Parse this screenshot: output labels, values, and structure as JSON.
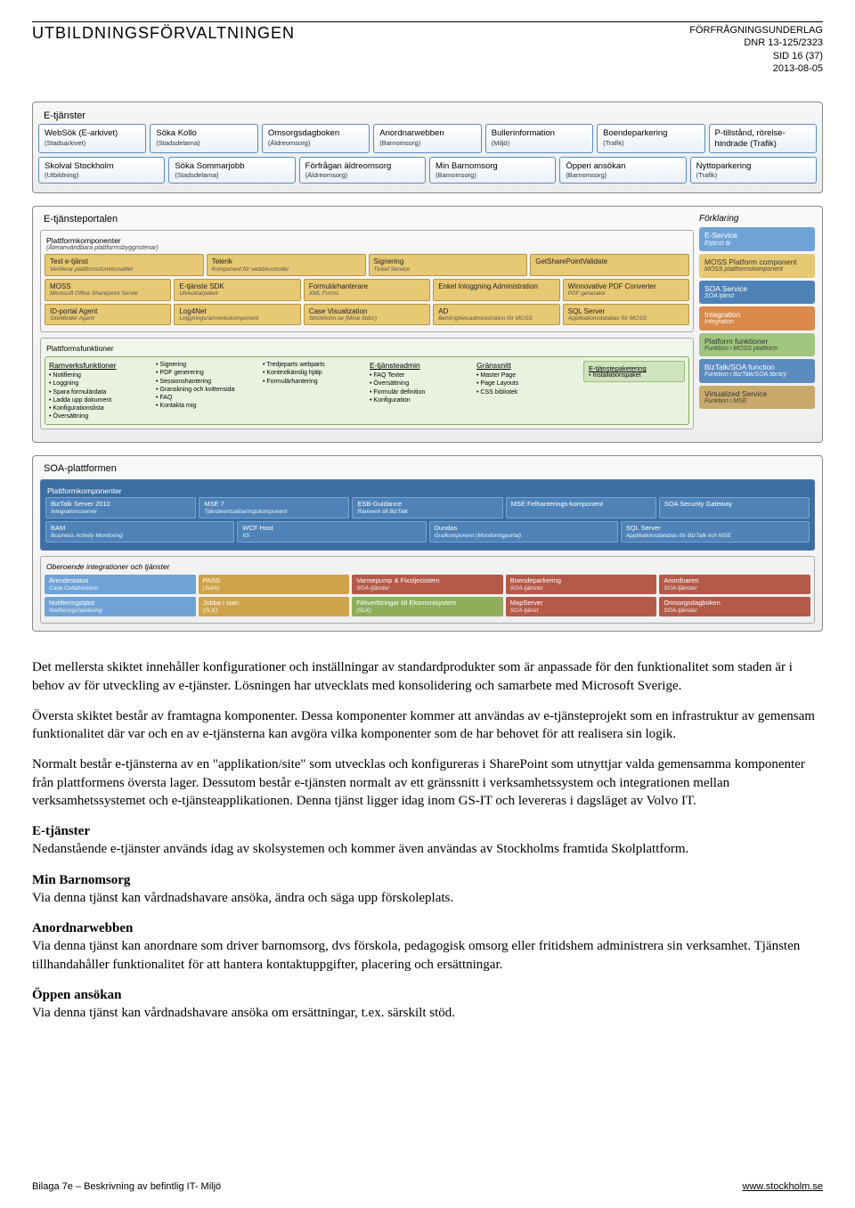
{
  "header": {
    "org": "UTBILDNINGSFÖRVALTNINGEN",
    "right1": "FÖRFRÅGNINGSUNDERLAG",
    "right2": "DNR 13-125/2323",
    "right3": "SID 16 (37)",
    "right4": "2013-08-05"
  },
  "colors": {
    "e_service": "#6fa3d8",
    "moss_component": "#e7c873",
    "soa_service": "#4f83b8",
    "integration": "#d98a4a",
    "platform_func": "#9fc57e",
    "biztalk_func": "#5b8bbf",
    "virtualized": "#c9a96b",
    "red": "#b55a4a",
    "yellow": "#cfa34a",
    "green": "#8fae5b"
  },
  "etjanster": {
    "title": "E-tjänster",
    "row1": [
      {
        "t": "WebSök (E-arkivet)",
        "s": "(Stadsarkivet)"
      },
      {
        "t": "Söka Kollo",
        "s": "(Stadsdelarna)"
      },
      {
        "t": "Omsorgsdagboken",
        "s": "(Äldreomsorg)"
      },
      {
        "t": "Anordnarwebben",
        "s": "(Barnomsorg)"
      },
      {
        "t": "Bullerinformation",
        "s": "(Miljö)"
      },
      {
        "t": "Boendeparkering",
        "s": "(Trafik)"
      },
      {
        "t": "P-tillstånd, rörelse-hindrade (Trafik)",
        "s": ""
      }
    ],
    "row2": [
      {
        "t": "Skolval Stockholm",
        "s": "(Utbildning)"
      },
      {
        "t": "Söka Sommarjobb",
        "s": "(Stadsdelarna)"
      },
      {
        "t": "Förfrågan äldreomsorg",
        "s": "(Äldreomsorg)"
      },
      {
        "t": "Min Barnomsorg",
        "s": "(Barnomsorg)"
      },
      {
        "t": "Öppen ansökan",
        "s": "(Barnomsorg)"
      },
      {
        "t": "Nyttoparkering",
        "s": "(Trafik)"
      }
    ]
  },
  "portal": {
    "title": "E-tjänsteportalen",
    "forklaring_title": "Förklaring",
    "forklaring": [
      {
        "t": "E-Service",
        "s": "Etjänst är",
        "c": "#6fa3d8"
      },
      {
        "t": "MOSS Platform component",
        "s": "MOSS plattformskomponent",
        "c": "#e7c873",
        "tc": "#333"
      },
      {
        "t": "SOA Service",
        "s": "SOA tjänst",
        "c": "#4f83b8"
      },
      {
        "t": "Integration",
        "s": "Integration",
        "c": "#d98a4a"
      },
      {
        "t": "Platform funktioner",
        "s": "Funktion i MOSS plattform",
        "c": "#9fc57e",
        "tc": "#333"
      },
      {
        "t": "BizTalk/SOA function",
        "s": "Funktion i BizTalk/SOA library",
        "c": "#5b8bbf"
      },
      {
        "t": "Virtualized Service",
        "s": "Funktion i MSE",
        "c": "#c9a96b",
        "tc": "#333"
      }
    ],
    "platt_title": "Plattformkomponenter",
    "platt_sub": "(Återanvändbara plattformsbyggnstenar)",
    "platt_rows": [
      [
        {
          "t": "Test e-tjänst",
          "s": "Verifierar plattformsfunktionalitet"
        },
        {
          "t": "Telerik",
          "s": "Komponent för webbkontroller"
        },
        {
          "t": "Signering",
          "s": "Ticket Service"
        },
        {
          "t": "GetSharePointValidate",
          "s": ""
        }
      ],
      [
        {
          "t": "MOSS",
          "s": "Microsoft Office Sharepoint Server"
        },
        {
          "t": "E-tjänste SDK",
          "s": "Utvecklarpaket"
        },
        {
          "t": "Formulärhanterare",
          "s": "XML Forms"
        },
        {
          "t": "Enkel Inloggning Administration",
          "s": ""
        },
        {
          "t": "Winnovative PDF Converter",
          "s": "PDF generator"
        }
      ],
      [
        {
          "t": "ID-portal Agent",
          "s": "SiteMinder Agent"
        },
        {
          "t": "Log4Net",
          "s": "Loggningsramverkskomponent"
        },
        {
          "t": "Case Visualization",
          "s": "Stockholm.se (Mina Sidor)"
        },
        {
          "t": "AD",
          "s": "Behörighetsadministration för MOSS"
        },
        {
          "t": "SQL Server",
          "s": "Applikationsdatabas för MOSS"
        }
      ]
    ],
    "func_title": "Plattformsfunktioner",
    "func_cols": [
      {
        "title": "Ramverksfunktioner",
        "items": [
          "Notifiering",
          "Loggning",
          "Spara formulärdata",
          "Ladda upp dokument",
          "Konfigurationslista",
          "Översättning"
        ]
      },
      {
        "title": "",
        "items": [
          "Signering",
          "PDF generering",
          "Sessionshantering",
          "Granskning och kvittensida",
          "FAQ",
          "Kontakta mig"
        ]
      },
      {
        "title": "",
        "items": [
          "Tredjeparts webparts",
          "Kontextkänslig hjälp",
          "Formulärhantering"
        ]
      },
      {
        "title": "E-tjänsteadmin",
        "items": [
          "FAQ Texter",
          "Översättning",
          "Formulär definition",
          "Konfiguration"
        ]
      },
      {
        "title": "Gränssnitt",
        "items": [
          "Master Page",
          "Page Layouts",
          "CSS bibliotek"
        ]
      }
    ],
    "etp_box": {
      "t": "E-tjänstepaketering",
      "s": "Installationspaket"
    }
  },
  "soa": {
    "title": "SOA-plattformen",
    "platt_title": "Plattformkomponenter",
    "platt_sub": "(Återanvändbara byggnstenar)",
    "rows": [
      [
        {
          "t": "BizTalk Server 2010",
          "s": "Integrationsserver"
        },
        {
          "t": "MSE 7",
          "s": "Tjänstevirtualiseringskomponent"
        },
        {
          "t": "ESB-Guidance",
          "s": "Ramverk till BizTalk"
        },
        {
          "t": "MSE Felhanterings-komponent",
          "s": ""
        },
        {
          "t": "SOA Security Gateway",
          "s": ""
        }
      ],
      [
        {
          "t": "BAM",
          "s": "Business Activity Monitoring"
        },
        {
          "t": "WCF Host",
          "s": "IIS"
        },
        {
          "t": "Dundas",
          "s": "Grafkomponent (Monitoringportal)"
        },
        {
          "t": "SQL Server",
          "s": "Applikationsdatabas för BizTalk och MSE"
        }
      ]
    ],
    "ober_title": "Oberoende integrationer och tjänster",
    "ober_rows": [
      [
        {
          "t": "Ärendestatus",
          "s": "Case Collaboration",
          "c": "#6fa3d8"
        },
        {
          "t": "PASS",
          "s": "(TeliA)",
          "c": "#cfa34a"
        },
        {
          "t": "Varmepump & Fixoljecistern",
          "s": "SOA-tjänster",
          "c": "#b55a4a"
        },
        {
          "t": "Boendeparkering",
          "s": "SOA-tjänster",
          "c": "#b55a4a"
        },
        {
          "t": "Anordnaren",
          "s": "SOA-tjänster",
          "c": "#b55a4a"
        }
      ],
      [
        {
          "t": "Notifieringstjäst",
          "s": "Notifieringshantering",
          "c": "#6fa3d8"
        },
        {
          "t": "Jobba i stan",
          "s": "(SLK)",
          "c": "#cfa34a"
        },
        {
          "t": "Filöverföringar till Ekonomisystem",
          "s": "(SLK)",
          "c": "#8fae5b"
        },
        {
          "t": "MapServer",
          "s": "SOA-tjänst",
          "c": "#b55a4a"
        },
        {
          "t": "Omsorgsdagboken",
          "s": "SOA-tjänster",
          "c": "#b55a4a"
        }
      ]
    ]
  },
  "body": {
    "p1": "Det mellersta skiktet innehåller konfigurationer och inställningar av standardprodukter som är anpassade för den funktionalitet som staden är i behov av för utveckling av e-tjänster. Lösningen har utvecklats med konsolidering och samarbete med Microsoft Sverige.",
    "p2": "Översta skiktet består av framtagna komponenter. Dessa komponenter kommer att användas av e-tjänsteprojekt som en infrastruktur av gemensam funktionalitet där var och en av e-tjänsterna kan avgöra vilka komponenter som de har behovet för att realisera sin logik.",
    "p3": "Normalt består e-tjänsterna av en \"applikation/site\" som utvecklas och konfigureras i SharePoint som utnyttjar valda gemensamma komponenter från plattformens översta lager. Dessutom består e-tjänsten normalt av ett gränssnitt i verksamhetssystem och integrationen mellan verksamhetssystemet och e-tjänsteapplikationen. Denna tjänst ligger idag inom GS-IT och levereras i dagsläget av Volvo IT.",
    "h1": "E-tjänster",
    "p4": "Nedanstående e-tjänster används idag av skolsystemen och kommer även användas av Stockholms framtida Skolplattform.",
    "h2": "Min Barnomsorg",
    "p5": "Via denna tjänst kan vårdnadshavare ansöka, ändra och säga upp förskoleplats.",
    "h3": "Anordnarwebben",
    "p6": "Via denna tjänst kan anordnare som driver barnomsorg, dvs förskola, pedagogisk omsorg eller fritidshem administrera sin verksamhet. Tjänsten tillhandahåller funktionalitet för att hantera kontaktuppgifter, placering och ersättningar.",
    "h4": "Öppen ansökan",
    "p7": "Via denna tjänst kan vårdnadshavare ansöka om ersättningar, t.ex. särskilt stöd."
  },
  "footer": {
    "left": "Bilaga 7e – Beskrivning av befintlig IT- Miljö",
    "right": "www.stockholm.se"
  }
}
